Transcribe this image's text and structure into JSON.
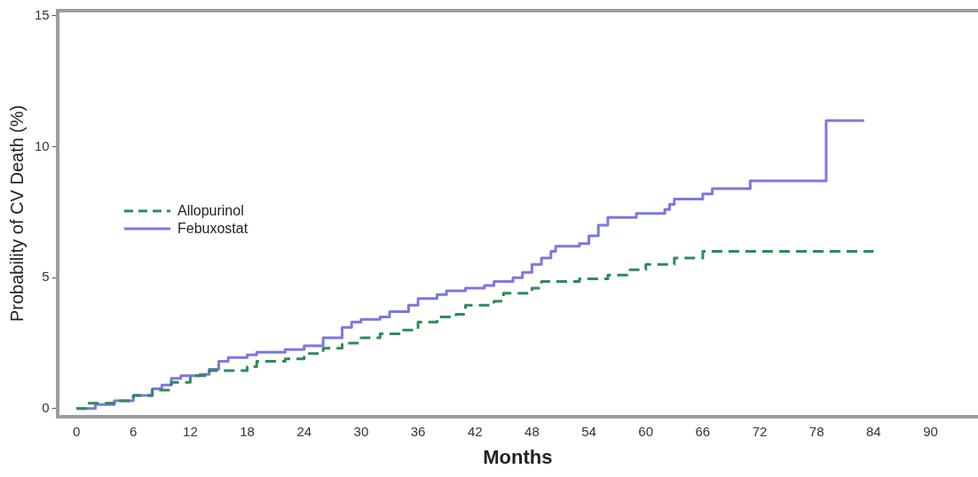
{
  "chart_data": {
    "type": "step",
    "xlabel": "Months",
    "ylabel": "Probability of CV Death (%)",
    "xlim": [
      -2,
      95
    ],
    "ylim": [
      -0.3,
      15.2
    ],
    "xticks": [
      0,
      6,
      12,
      18,
      24,
      30,
      36,
      42,
      48,
      54,
      60,
      66,
      72,
      78,
      84,
      90
    ],
    "yticks": [
      0,
      5,
      10,
      15
    ],
    "grid": false,
    "legend": "left",
    "series": [
      {
        "name": "Allopurinol",
        "color": "#2e8b57",
        "line_style": "dashed",
        "x": [
          0,
          1,
          4,
          6,
          8,
          10,
          12,
          14,
          18,
          19,
          22,
          24,
          26,
          28,
          30,
          32,
          34,
          36,
          38,
          40,
          41,
          44,
          45,
          48,
          49,
          53,
          56,
          58,
          60,
          63,
          66,
          84
        ],
        "values": [
          0,
          0.2,
          0.3,
          0.5,
          0.7,
          1.0,
          1.25,
          1.45,
          1.6,
          1.8,
          1.9,
          2.1,
          2.3,
          2.5,
          2.7,
          2.85,
          3.0,
          3.3,
          3.5,
          3.6,
          3.95,
          4.1,
          4.4,
          4.6,
          4.85,
          4.95,
          5.1,
          5.3,
          5.5,
          5.75,
          6.0,
          6.0
        ]
      },
      {
        "name": "Febuxostat",
        "color": "#7b78e0",
        "line_style": "solid",
        "x": [
          0,
          2,
          4,
          6,
          8,
          9,
          10,
          11,
          13,
          14,
          15,
          16,
          18,
          19,
          22,
          24,
          26,
          28,
          29,
          30,
          32,
          33,
          35,
          36,
          38,
          39,
          41,
          43,
          44,
          46,
          47,
          48,
          49,
          50,
          50.5,
          53,
          54,
          55,
          56,
          59,
          62,
          62.5,
          63,
          66,
          67,
          71,
          79,
          83
        ],
        "values": [
          0,
          0.15,
          0.3,
          0.5,
          0.75,
          0.9,
          1.15,
          1.25,
          1.3,
          1.5,
          1.8,
          1.95,
          2.05,
          2.15,
          2.25,
          2.4,
          2.7,
          3.1,
          3.3,
          3.4,
          3.5,
          3.7,
          3.95,
          4.2,
          4.35,
          4.5,
          4.6,
          4.7,
          4.85,
          5.0,
          5.2,
          5.5,
          5.75,
          6.0,
          6.2,
          6.3,
          6.6,
          7.0,
          7.3,
          7.45,
          7.6,
          7.8,
          8.0,
          8.2,
          8.4,
          8.7,
          11.0,
          11.0
        ]
      }
    ]
  }
}
